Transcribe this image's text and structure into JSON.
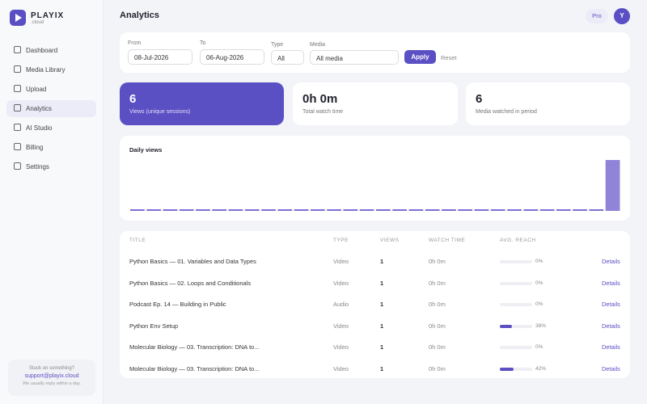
{
  "brand": {
    "name": "PLAYIX",
    "suffix": ".cloud"
  },
  "nav": [
    "Dashboard",
    "Media Library",
    "Upload",
    "Analytics",
    "AI Studio",
    "Billing",
    "Settings"
  ],
  "active_nav": 3,
  "help": {
    "question": "Stuck on something?",
    "email": "support@playix.cloud",
    "note": "We usually reply within a day."
  },
  "header": {
    "title": "Analytics",
    "plan": "Pro",
    "avatar": "Y"
  },
  "filters": {
    "from_label": "From",
    "from": "08-Jul-2026",
    "to_label": "To",
    "to": "06-Aug-2026",
    "type_label": "Type",
    "type": "All",
    "media_label": "Media",
    "media": "All media",
    "apply": "Apply",
    "reset": "Reset"
  },
  "stats": [
    {
      "value": "6",
      "label": "Views (unique sessions)"
    },
    {
      "value": "0h 0m",
      "label": "Total watch time"
    },
    {
      "value": "6",
      "label": "Media watched in period"
    }
  ],
  "chart_data": {
    "type": "bar",
    "title": "Daily views",
    "values": [
      0,
      0,
      0,
      0,
      0,
      0,
      0,
      0,
      0,
      0,
      0,
      0,
      0,
      0,
      0,
      0,
      0,
      0,
      0,
      0,
      0,
      0,
      0,
      0,
      0,
      0,
      0,
      0,
      0,
      6
    ],
    "ylim": [
      0,
      6
    ],
    "color": "#7b6fd3",
    "highlight_color": "#8f84d8"
  },
  "table": {
    "columns": [
      "TITLE",
      "TYPE",
      "VIEWS",
      "WATCH TIME",
      "AVG. REACH"
    ],
    "action": "Details",
    "rows": [
      {
        "title": "Python Basics — 01. Variables and Data Types",
        "type": "Video",
        "views": 1,
        "watch_time": "0h 0m",
        "reach": 0,
        "reach_label": "0%"
      },
      {
        "title": "Python Basics — 02. Loops and Conditionals",
        "type": "Video",
        "views": 1,
        "watch_time": "0h 0m",
        "reach": 0,
        "reach_label": "0%"
      },
      {
        "title": "Podcast Ep. 14 — Building in Public",
        "type": "Audio",
        "views": 1,
        "watch_time": "0h 0m",
        "reach": 0,
        "reach_label": "0%"
      },
      {
        "title": "Python Env Setup",
        "type": "Video",
        "views": 1,
        "watch_time": "0h 0m",
        "reach": 38,
        "reach_label": "38%"
      },
      {
        "title": "Molecular Biology — 03. Transcription: DNA to...",
        "type": "Video",
        "views": 1,
        "watch_time": "0h 0m",
        "reach": 0,
        "reach_label": "0%"
      },
      {
        "title": "Molecular Biology — 03. Transcription: DNA to...",
        "type": "Video",
        "views": 1,
        "watch_time": "0h 0m",
        "reach": 42,
        "reach_label": "42%"
      }
    ]
  }
}
